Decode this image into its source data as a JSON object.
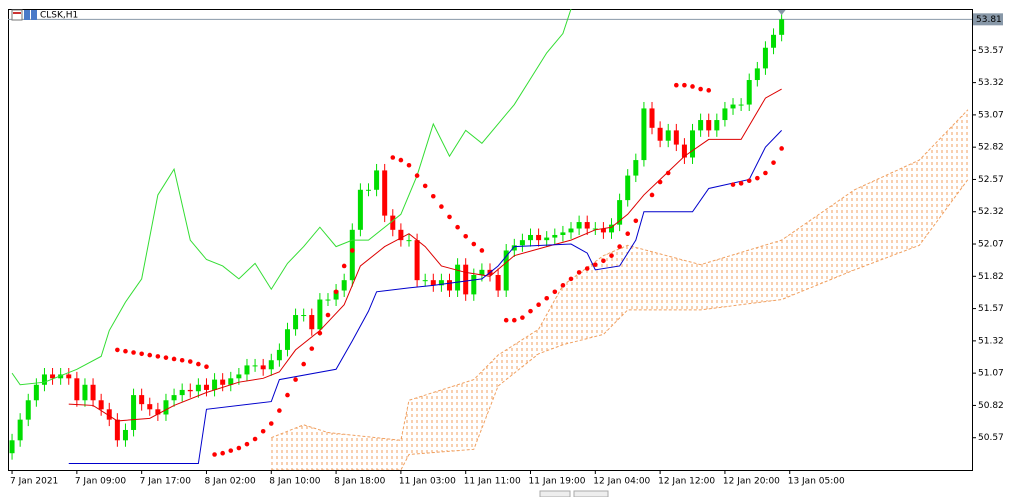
{
  "chart_data": {
    "type": "candlestick",
    "title": "CLSK,H1",
    "up_color": "#00dd00",
    "down_color": "#ff0000",
    "xlim": [
      -0.5,
      118.5
    ],
    "ylim": [
      50.32,
      53.89
    ],
    "xticks": [
      {
        "value": 0,
        "label": "7 Jan 2021"
      },
      {
        "value": 8,
        "label": "7 Jan 09:00"
      },
      {
        "value": 16,
        "label": "7 Jan 17:00"
      },
      {
        "value": 24,
        "label": "8 Jan 02:00"
      },
      {
        "value": 32,
        "label": "8 Jan 10:00"
      },
      {
        "value": 40,
        "label": "8 Jan 18:00"
      },
      {
        "value": 48,
        "label": "11 Jan 03:00"
      },
      {
        "value": 56,
        "label": "11 Jan 11:00"
      },
      {
        "value": 64,
        "label": "11 Jan 19:00"
      },
      {
        "value": 72,
        "label": "12 Jan 04:00"
      },
      {
        "value": 80,
        "label": "12 Jan 12:00"
      },
      {
        "value": 88,
        "label": "12 Jan 20:00"
      },
      {
        "value": 96,
        "label": "13 Jan 05:00"
      }
    ],
    "yticks": [
      50.57,
      50.82,
      51.07,
      51.32,
      51.57,
      51.82,
      52.07,
      52.32,
      52.57,
      52.82,
      53.07,
      53.32,
      53.57
    ],
    "open": [
      50.45,
      50.55,
      50.71,
      50.86,
      50.98,
      51.06,
      51.03,
      51.06,
      51.03,
      50.86,
      50.98,
      50.86,
      50.79,
      50.71,
      50.55,
      50.63,
      50.9,
      50.83,
      50.79,
      50.75,
      50.86,
      50.9,
      50.94,
      50.93,
      50.98,
      50.94,
      51.02,
      50.98,
      51.03,
      51.06,
      51.13,
      51.13,
      51.1,
      51.17,
      51.25,
      51.41,
      51.52,
      51.52,
      51.41,
      51.64,
      51.64,
      51.71,
      51.79,
      52.18,
      52.49,
      52.49,
      52.64,
      52.29,
      52.18,
      52.1,
      52.1,
      51.79,
      51.79,
      51.75,
      51.79,
      51.71,
      51.91,
      51.68,
      51.83,
      51.87,
      51.83,
      51.71,
      52.02,
      52.06,
      52.1,
      52.14,
      52.1,
      52.12,
      52.14,
      52.16,
      52.19,
      52.24,
      52.19,
      52.19,
      52.16,
      52.22,
      52.41,
      52.6,
      52.72,
      53.12,
      52.97,
      52.87,
      52.95,
      52.84,
      52.74,
      52.95,
      53.03,
      52.95,
      53.03,
      53.12,
      53.15,
      53.15,
      53.34,
      53.43,
      53.59,
      53.69
    ],
    "high": [
      50.6,
      50.76,
      50.91,
      51.03,
      51.11,
      51.11,
      51.11,
      51.11,
      51.08,
      51.03,
      51.03,
      50.91,
      50.84,
      50.76,
      50.68,
      50.95,
      50.95,
      50.88,
      50.84,
      50.91,
      50.95,
      50.99,
      50.99,
      51.03,
      51.03,
      51.07,
      51.07,
      51.08,
      51.11,
      51.18,
      51.18,
      51.18,
      51.22,
      51.3,
      51.46,
      51.57,
      51.57,
      51.57,
      51.69,
      51.69,
      51.76,
      51.84,
      52.23,
      52.54,
      52.54,
      52.69,
      52.69,
      52.34,
      52.23,
      52.15,
      52.15,
      51.84,
      51.84,
      51.84,
      51.84,
      51.96,
      51.96,
      51.88,
      51.92,
      51.92,
      51.88,
      52.07,
      52.11,
      52.15,
      52.19,
      52.19,
      52.17,
      52.19,
      52.21,
      52.24,
      52.29,
      52.29,
      52.24,
      52.24,
      52.27,
      52.46,
      52.65,
      52.77,
      53.17,
      53.17,
      53.02,
      53.0,
      53.0,
      52.89,
      53.0,
      53.08,
      53.08,
      53.08,
      53.17,
      53.2,
      53.2,
      53.39,
      53.48,
      53.64,
      53.74,
      53.86
    ],
    "low": [
      50.4,
      50.5,
      50.66,
      50.81,
      50.93,
      50.98,
      50.98,
      50.98,
      50.81,
      50.81,
      50.81,
      50.74,
      50.66,
      50.5,
      50.5,
      50.58,
      50.78,
      50.74,
      50.7,
      50.7,
      50.81,
      50.85,
      50.88,
      50.88,
      50.89,
      50.89,
      50.93,
      50.93,
      50.98,
      51.01,
      51.08,
      51.05,
      51.05,
      51.12,
      51.2,
      51.36,
      51.47,
      51.36,
      51.36,
      51.59,
      51.59,
      51.66,
      51.74,
      52.13,
      52.44,
      52.44,
      52.24,
      52.13,
      52.05,
      52.05,
      51.74,
      51.74,
      51.7,
      51.7,
      51.66,
      51.66,
      51.63,
      51.63,
      51.78,
      51.78,
      51.66,
      51.66,
      51.97,
      52.01,
      52.05,
      52.05,
      52.05,
      52.07,
      52.09,
      52.11,
      52.14,
      52.14,
      52.14,
      52.11,
      52.11,
      52.17,
      52.36,
      52.55,
      52.67,
      52.92,
      52.82,
      52.82,
      52.79,
      52.69,
      52.69,
      52.9,
      52.9,
      52.9,
      52.98,
      53.07,
      53.1,
      53.1,
      53.29,
      53.38,
      53.54,
      53.64
    ],
    "close": [
      50.55,
      50.71,
      50.86,
      50.98,
      51.06,
      51.03,
      51.06,
      51.03,
      50.86,
      50.98,
      50.86,
      50.79,
      50.71,
      50.55,
      50.63,
      50.9,
      50.83,
      50.79,
      50.75,
      50.86,
      50.9,
      50.94,
      50.93,
      50.98,
      50.94,
      51.02,
      50.98,
      51.03,
      51.06,
      51.13,
      51.13,
      51.1,
      51.17,
      51.25,
      51.41,
      51.52,
      51.52,
      51.41,
      51.64,
      51.64,
      51.71,
      51.79,
      52.18,
      52.49,
      52.49,
      52.64,
      52.29,
      52.18,
      52.1,
      52.1,
      51.79,
      51.79,
      51.75,
      51.79,
      51.71,
      51.91,
      51.68,
      51.83,
      51.87,
      51.83,
      51.71,
      52.02,
      52.06,
      52.1,
      52.14,
      52.1,
      52.12,
      52.14,
      52.16,
      52.19,
      52.24,
      52.19,
      52.19,
      52.16,
      52.22,
      52.41,
      52.6,
      52.72,
      53.12,
      52.97,
      52.87,
      52.95,
      52.84,
      52.74,
      52.95,
      53.03,
      52.95,
      53.03,
      53.12,
      53.15,
      53.15,
      53.34,
      53.43,
      53.59,
      53.69,
      53.81
    ],
    "cloud": {
      "color": "#f0a060",
      "x": [
        32,
        36,
        39,
        48,
        49,
        57,
        60,
        65,
        68,
        73,
        76,
        85,
        95,
        104,
        112,
        118
      ],
      "upper": [
        50.57,
        50.67,
        50.61,
        50.55,
        50.86,
        51.02,
        51.21,
        51.41,
        51.75,
        51.98,
        52.06,
        51.91,
        52.1,
        52.49,
        52.72,
        53.11
      ],
      "lower": [
        50.32,
        50.32,
        50.32,
        50.32,
        50.44,
        50.48,
        50.97,
        51.22,
        51.29,
        51.37,
        51.56,
        51.56,
        51.64,
        51.87,
        52.06,
        52.57
      ]
    },
    "series": [
      {
        "style": "line",
        "color": "#33dd33",
        "x": [
          0,
          1,
          4,
          8,
          11,
          12,
          14,
          16,
          18,
          20,
          22,
          24,
          26,
          28,
          30,
          32,
          34,
          36,
          38,
          40,
          42,
          44,
          46,
          48,
          50,
          52,
          54,
          56,
          58,
          60,
          62,
          64,
          66,
          68,
          69
        ],
        "values": [
          51.07,
          50.98,
          51.0,
          51.1,
          51.2,
          51.4,
          51.62,
          51.8,
          52.45,
          52.65,
          52.1,
          51.95,
          51.9,
          51.8,
          51.92,
          51.72,
          51.92,
          52.05,
          52.2,
          52.05,
          52.1,
          52.1,
          52.2,
          52.3,
          52.6,
          53.0,
          52.75,
          52.95,
          52.85,
          53.0,
          53.15,
          53.35,
          53.55,
          53.7,
          53.89
        ]
      },
      {
        "style": "line",
        "color": "#dd0000",
        "x": [
          7,
          10,
          13,
          17,
          20,
          24,
          28,
          31,
          33,
          35,
          38,
          41,
          43,
          46,
          49,
          51,
          53,
          56,
          59,
          62,
          66,
          69,
          72,
          74,
          76,
          78,
          80,
          83,
          86,
          90,
          93,
          95
        ],
        "values": [
          50.83,
          50.82,
          50.7,
          50.72,
          50.82,
          50.92,
          51.0,
          51.03,
          51.08,
          51.25,
          51.4,
          51.6,
          51.9,
          52.05,
          52.15,
          52.05,
          51.9,
          51.85,
          51.82,
          51.98,
          52.05,
          52.1,
          52.18,
          52.2,
          52.3,
          52.45,
          52.57,
          52.75,
          52.88,
          52.88,
          53.2,
          53.27
        ]
      },
      {
        "style": "line",
        "color": "#0000cc",
        "x": [
          7,
          23,
          24,
          32,
          33,
          40,
          42,
          44,
          45,
          49,
          52,
          58,
          60,
          62,
          69,
          71,
          72,
          75,
          77,
          78,
          84,
          86,
          91,
          93,
          95
        ],
        "values": [
          50.37,
          50.37,
          50.79,
          50.85,
          51.02,
          51.1,
          51.32,
          51.55,
          51.7,
          51.73,
          51.75,
          51.8,
          51.9,
          52.05,
          52.07,
          52.0,
          51.87,
          51.9,
          52.1,
          52.32,
          52.32,
          52.5,
          52.57,
          52.82,
          52.95
        ]
      },
      {
        "style": "dots",
        "color": "#ff0000",
        "x": [
          13,
          14,
          15,
          16,
          17,
          18,
          19,
          20,
          21,
          22,
          23,
          24,
          25,
          26,
          27,
          28,
          29,
          30,
          31,
          32,
          33,
          34,
          35,
          36,
          37,
          38,
          39,
          40,
          41,
          42,
          47,
          48,
          49,
          50,
          51,
          52,
          53,
          54,
          55,
          56,
          57,
          58,
          61,
          62,
          63,
          64,
          65,
          66,
          67,
          68,
          69,
          70,
          71,
          72,
          73,
          74,
          75,
          76,
          77,
          79,
          80,
          81,
          82,
          83,
          84,
          85,
          86,
          89,
          90,
          91,
          92,
          93,
          94,
          95
        ],
        "values": [
          51.25,
          51.24,
          51.23,
          51.22,
          51.21,
          51.2,
          51.19,
          51.18,
          51.17,
          51.16,
          51.14,
          51.12,
          50.44,
          50.45,
          50.47,
          50.49,
          50.52,
          50.56,
          50.62,
          50.68,
          50.78,
          50.9,
          51.02,
          51.14,
          51.26,
          51.38,
          51.52,
          51.7,
          51.9,
          52.02,
          52.74,
          52.72,
          52.68,
          52.6,
          52.52,
          52.44,
          52.36,
          52.28,
          52.2,
          52.13,
          52.07,
          52.02,
          51.48,
          51.48,
          51.5,
          51.55,
          51.6,
          51.65,
          51.7,
          51.75,
          51.8,
          51.85,
          51.88,
          51.91,
          51.94,
          51.98,
          52.05,
          52.15,
          52.25,
          52.45,
          52.55,
          52.62,
          53.3,
          53.3,
          53.29,
          53.27,
          53.26,
          52.53,
          52.54,
          52.56,
          52.58,
          52.62,
          52.7,
          52.81
        ]
      }
    ]
  }
}
